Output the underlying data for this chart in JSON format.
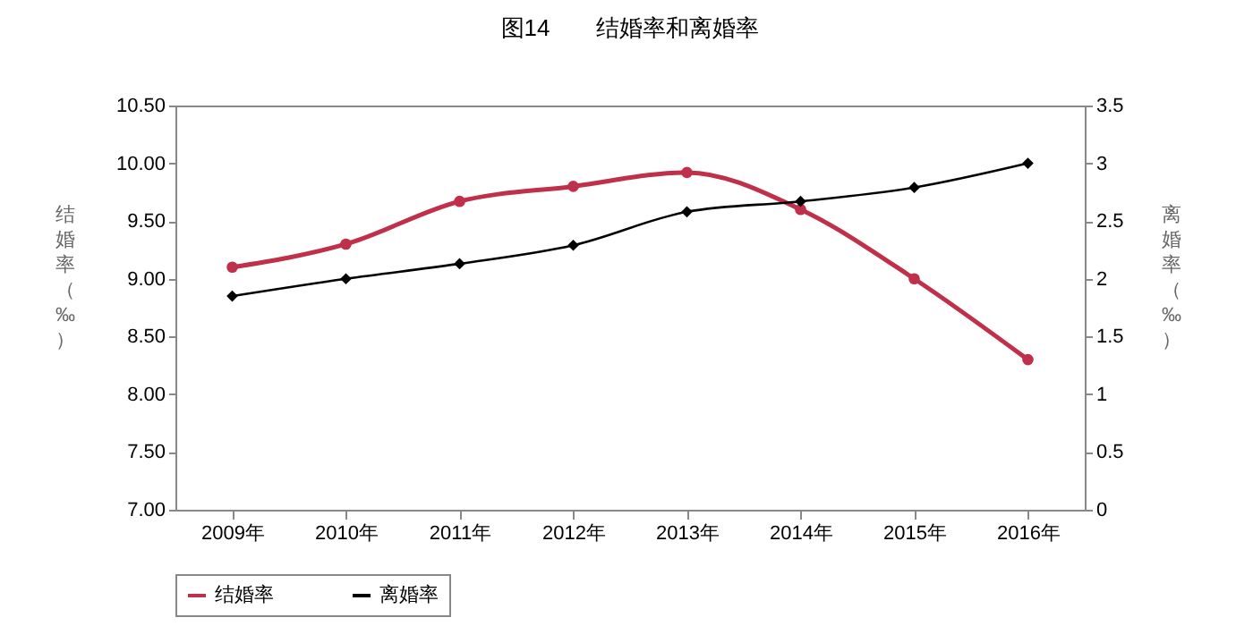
{
  "chart_data": {
    "type": "line",
    "title": "图14　　结婚率和离婚率",
    "ylabel": "结婚率（‰）",
    "y2label": "离婚率（‰）",
    "categories": [
      "2009年",
      "2010年",
      "2011年",
      "2012年",
      "2013年",
      "2014年",
      "2015年",
      "2016年"
    ],
    "series": [
      {
        "name": "结婚率",
        "color": "#c0304a",
        "marker": "circle",
        "values": [
          9.1,
          9.3,
          9.67,
          9.8,
          9.92,
          9.6,
          9.0,
          8.3
        ]
      },
      {
        "name": "离婚率",
        "color": "#000000",
        "marker": "diamond",
        "axis": "y2",
        "values": [
          1.85,
          2.0,
          2.13,
          2.29,
          2.58,
          2.67,
          2.79,
          3.0
        ]
      }
    ],
    "ylim": [
      7,
      10.5
    ],
    "yticks": [
      {
        "value": 7,
        "label": "7.00"
      },
      {
        "value": 7.5,
        "label": "7.50"
      },
      {
        "value": 8,
        "label": "8.00"
      },
      {
        "value": 8.5,
        "label": "8.50"
      },
      {
        "value": 9,
        "label": "9.00"
      },
      {
        "value": 9.5,
        "label": "9.50"
      },
      {
        "value": 10,
        "label": "10.00"
      },
      {
        "value": 10.5,
        "label": "10.50"
      }
    ],
    "y2lim": [
      0,
      3.5
    ],
    "y2ticks": [
      {
        "value": 0,
        "label": "0"
      },
      {
        "value": 0.5,
        "label": "0.5"
      },
      {
        "value": 1,
        "label": "1"
      },
      {
        "value": 1.5,
        "label": "1.5"
      },
      {
        "value": 2,
        "label": "2"
      },
      {
        "value": 2.5,
        "label": "2.5"
      },
      {
        "value": 3,
        "label": "3"
      },
      {
        "value": 3.5,
        "label": "3.5"
      }
    ],
    "grid": false,
    "legend": "bottom",
    "line_style": "solid"
  }
}
